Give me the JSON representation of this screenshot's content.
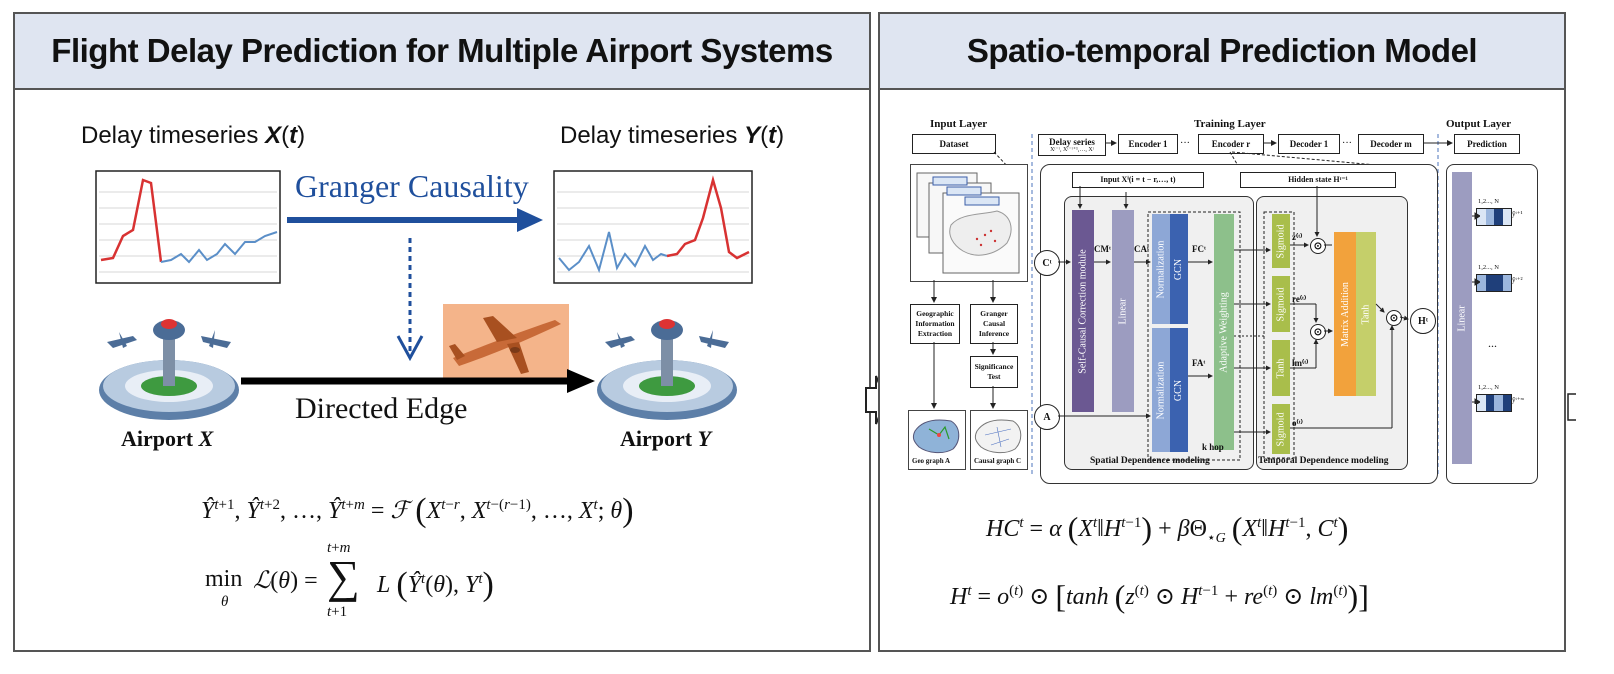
{
  "left_panel": {
    "title": "Flight Delay Prediction for Multiple Airport Systems",
    "series_x_label": "Delay timeseries X(t)",
    "series_y_label": "Delay timeseries Y(t)",
    "granger_label": "Granger Causality",
    "edge_label": "Directed Edge",
    "airport_x": "Airport X",
    "airport_y": "Airport Y",
    "formula_1": "Ŷ^{t+1}, Ŷ^{t+2}, …, Ŷ^{t+m} = ℱ ( X^{t−r}, X^{t−(r−1)}, …, X^{t}; θ )",
    "formula_2": "min_θ ℒ(θ) = Σ_{t+1}^{t+m} L ( Ŷ^{t}(θ), Y^{t} )"
  },
  "right_panel": {
    "title": "Spatio-temporal Prediction Model",
    "layers": {
      "input": "Input Layer",
      "training": "Training Layer",
      "output": "Output Layer"
    },
    "top_boxes": {
      "dataset": "Dataset",
      "delay_series": "Delay series",
      "delay_series_sub": "Xᵗ⁻ʳ, Xᵗ⁻ʳ⁺¹,…, Xᵗ",
      "encoder_1": "Encoder 1",
      "encoder_r": "Encoder r",
      "decoder_1": "Decoder 1",
      "decoder_m": "Decoder m",
      "prediction": "Prediction",
      "dots": "···"
    },
    "input_left": {
      "geo": "Geographic Information Extraction",
      "granger": "Granger Causal Inference",
      "significance": "Significance Test",
      "geo_graph": "Geo graph A",
      "causal_graph": "Causal graph C"
    },
    "spatial": {
      "input_label": "Input Xⁱ(i = t − r,…, t)",
      "correction": "Self-Causal Correction module",
      "linear": "Linear",
      "normalization": "Normalization",
      "gcn": "GCN",
      "adaptive": "Adaptive Weighting",
      "c_node": "Cᵗ",
      "a_node": "A",
      "cm": "CMᵗ",
      "ca": "CAᵗ",
      "fc": "FCᵗ",
      "fa": "FAᵗ",
      "khop": "k hop",
      "caption": "Spatial Dependence modeling"
    },
    "temporal": {
      "hidden_label": "Hidden state Hᵗ⁻¹",
      "sigmoid": "Sigmoid",
      "tanh": "Tanh",
      "matrix_addition": "Matrix Addition",
      "z": "z⁽ᵗ⁾",
      "re": "re⁽ᵗ⁾",
      "lm": "lm⁽ᵗ⁾",
      "o": "o⁽ᵗ⁾",
      "h_out": "Hᵗ",
      "caption": "Temporal Dependence modeling"
    },
    "output": {
      "linear": "Linear",
      "nodes": "1,2..., N",
      "y1": "ŷᵗ⁺¹",
      "y2": "ŷᵗ⁺²",
      "ym": "ŷᵗ⁺ᵐ",
      "dots": "..."
    },
    "formula_1": "HCᵗ = α ( Xᵗ ‖ Hᵗ⁻¹ ) + βΘ⋆G ( Xᵗ ‖ Hᵗ⁻¹, Cᵗ )",
    "formula_2": "Hᵗ = o⁽ᵗ⁾ ⊙ [ tanh ( z⁽ᵗ⁾ ⊙ Hᵗ⁻¹ + re⁽ᵗ⁾ ⊙ lm⁽ᵗ⁾ ) ]"
  },
  "colors": {
    "header_bg": "#dfe5f1",
    "red_series": "#d83232",
    "blue_series": "#5b8fc8",
    "arrow_blue": "#1f4f9c",
    "purple": "#6b5892",
    "lavender": "#9c9cc0",
    "steel_blue": "#8da7d6",
    "green": "#8dc08b",
    "olive": "#a9be4b",
    "orange": "#f2a23c",
    "olive_light": "#c5cf6a"
  }
}
